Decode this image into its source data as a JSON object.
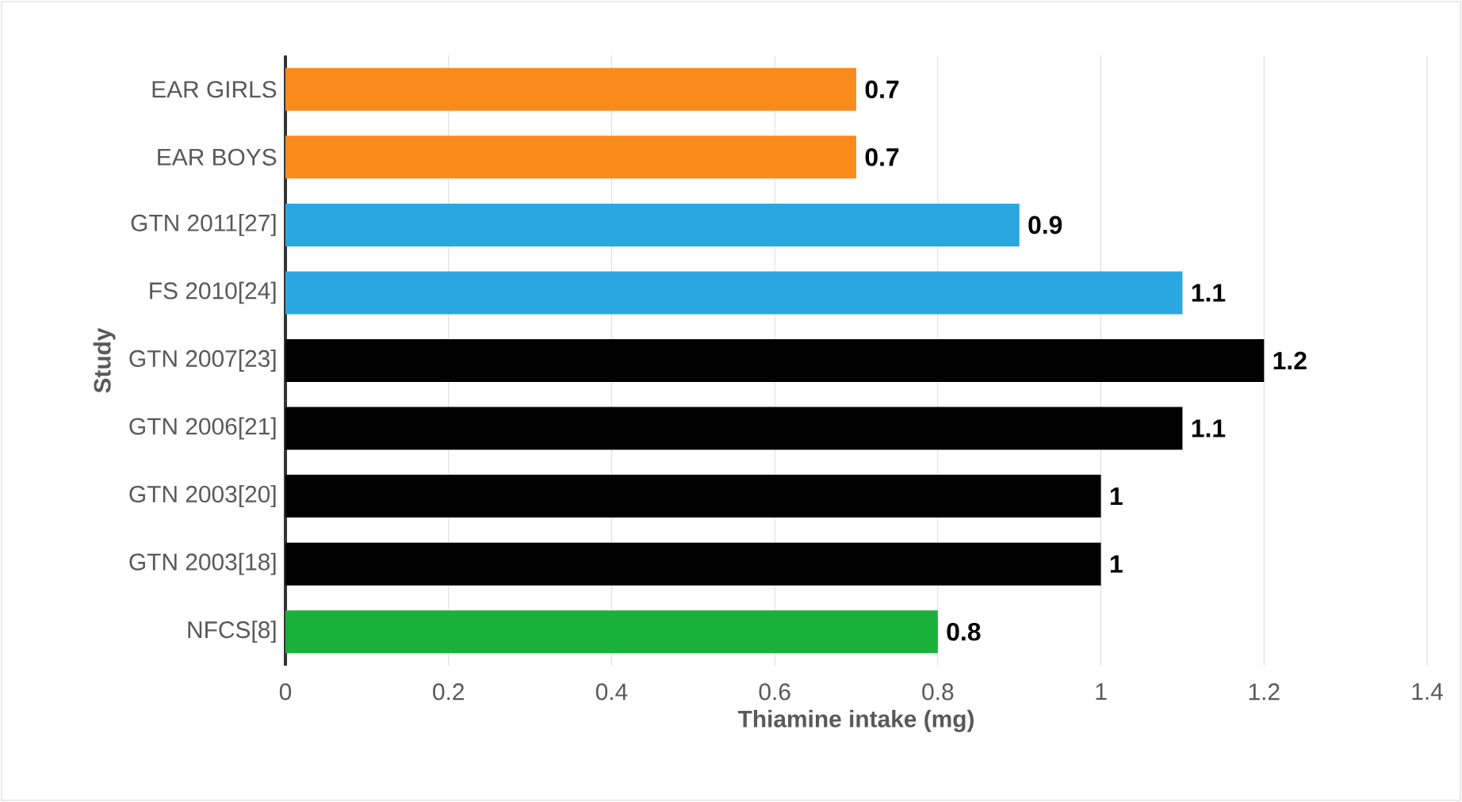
{
  "chart_data": {
    "type": "bar",
    "orientation": "horizontal",
    "xlabel": "Thiamine intake (mg)",
    "ylabel": "Study",
    "categories": [
      "EAR GIRLS",
      "EAR BOYS",
      "GTN 2011[27]",
      "FS  2010[24]",
      "GTN  2007[23]",
      "GTN 2006[21]",
      "GTN 2003[20]",
      "GTN 2003[18]",
      "NFCS[8]"
    ],
    "values": [
      0.7,
      0.7,
      0.9,
      1.1,
      1.2,
      1.1,
      1,
      1,
      0.8
    ],
    "colors": [
      "#fb8a1d",
      "#fb8a1d",
      "#2aa7df",
      "#2aa7df",
      "#000000",
      "#000000",
      "#000000",
      "#000000",
      "#1ab13b"
    ],
    "xlim": [
      0,
      1.4
    ],
    "xticks": [
      0,
      0.2,
      0.4,
      0.6,
      0.8,
      1,
      1.2,
      1.4
    ],
    "grid": "x",
    "data_labels": true
  }
}
